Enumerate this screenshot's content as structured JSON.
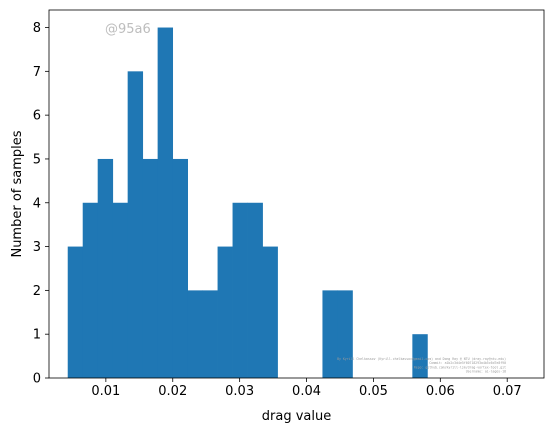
{
  "chart_data": {
    "type": "bar",
    "subtype": "histogram",
    "xlabel": "drag value",
    "ylabel": "Number of samples",
    "xlim": [
      0.0015,
      0.0755
    ],
    "ylim": [
      0,
      8.4
    ],
    "xticks": [
      0.01,
      0.02,
      0.03,
      0.04,
      0.05,
      0.06,
      0.07
    ],
    "xtick_labels": [
      "0.01",
      "0.02",
      "0.03",
      "0.04",
      "0.05",
      "0.06",
      "0.07"
    ],
    "yticks": [
      0,
      1,
      2,
      3,
      4,
      5,
      6,
      7,
      8
    ],
    "ytick_labels": [
      "0",
      "1",
      "2",
      "3",
      "4",
      "5",
      "6",
      "7",
      "8"
    ],
    "bin_start": 0.0043,
    "bin_width": 0.00224,
    "values": [
      3,
      4,
      5,
      4,
      7,
      5,
      8,
      5,
      2,
      2,
      3,
      4,
      4,
      3,
      0,
      0,
      0,
      2,
      2,
      0,
      0,
      0,
      0,
      1
    ],
    "bar_color": "#1f77b4",
    "grid": false
  },
  "watermark": "@95a6",
  "credit_lines": [
    "By Kyrill Chelkassov (Kyrill.chelkassov@gmail.com) and Dong Ray @ NTU (dray.ray@ntu.edu)",
    "Commit: a1b2c3d4e5f60718293a4b5c6d7e8f90",
    "Repo: github.com/kyrill-ljm/drag-vortex-tool.git",
    "Username: ai-lagos-18"
  ]
}
